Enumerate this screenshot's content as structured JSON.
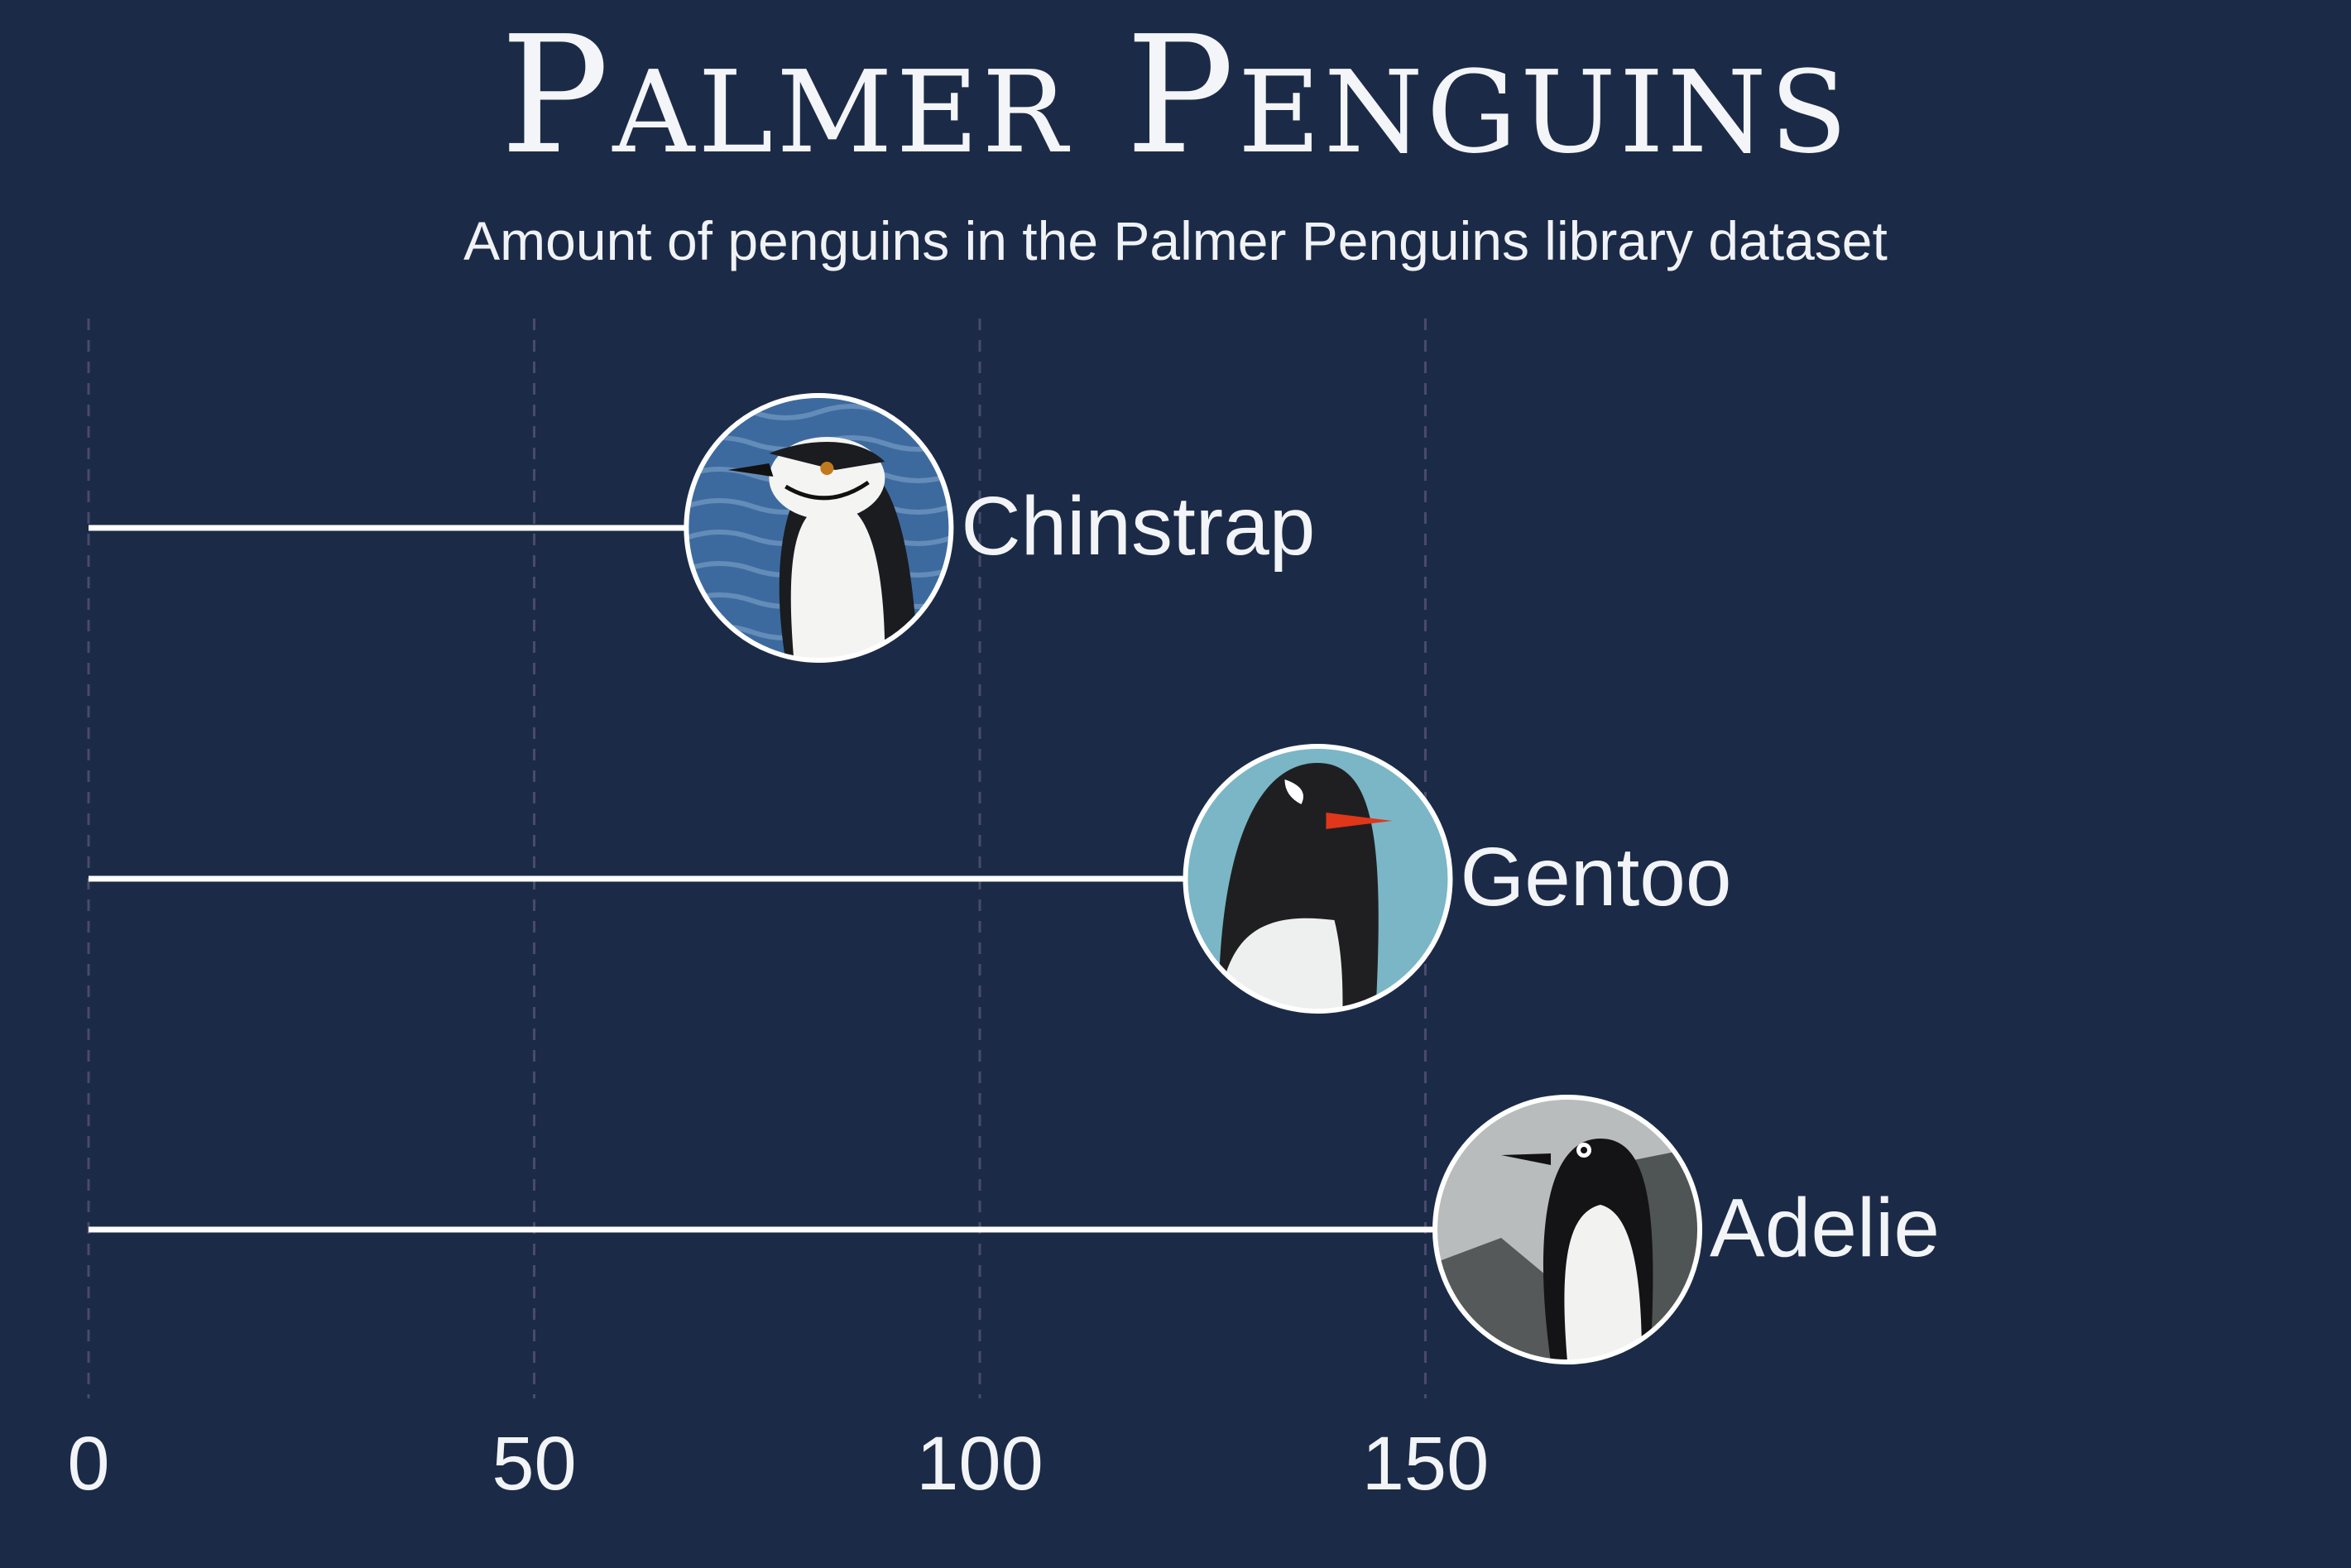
{
  "title": "Palmer Penguins",
  "subtitle": "Amount of penguins in the Palmer Penguins library dataset",
  "colors": {
    "background": "#1b2b47",
    "bar": "#ffffff",
    "grid": "#4a4a6a",
    "text": "#f2f4f7"
  },
  "chart_data": {
    "type": "bar",
    "orientation": "horizontal",
    "categories": [
      "Chinstrap",
      "Gentoo",
      "Adelie"
    ],
    "values": [
      68,
      124,
      152
    ],
    "x_ticks": [
      0,
      50,
      100,
      150
    ],
    "xlim": [
      0,
      265
    ],
    "grid": "vertical dashed",
    "marker": "circular penguin photo at bar end",
    "icons": [
      "chinstrap-penguin-photo",
      "gentoo-penguin-photo",
      "adelie-penguin-photo"
    ]
  }
}
